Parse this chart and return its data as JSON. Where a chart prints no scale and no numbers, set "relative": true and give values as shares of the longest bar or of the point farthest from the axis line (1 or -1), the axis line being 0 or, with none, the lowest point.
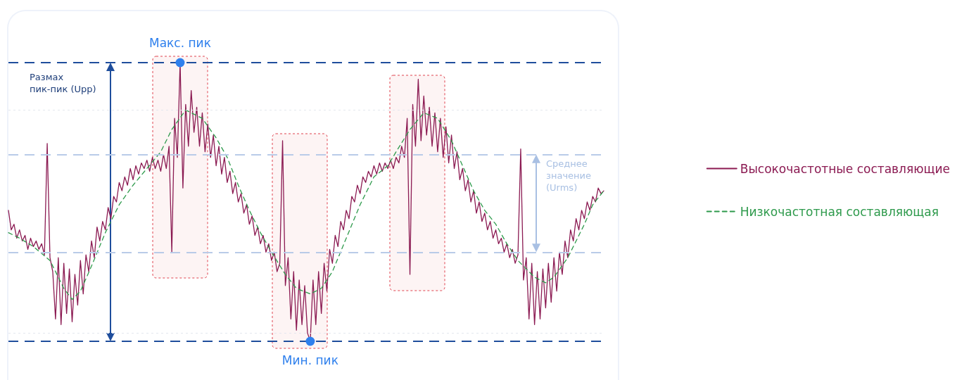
{
  "chart_data": {
    "type": "line",
    "relative": true,
    "legend": "right",
    "categories": [
      null,
      null,
      null,
      null,
      null,
      null,
      null,
      null,
      null,
      null,
      null,
      null,
      null,
      null,
      null,
      null,
      null,
      null,
      null,
      null,
      null,
      null,
      null,
      null,
      null,
      null,
      null,
      null,
      null,
      null,
      null,
      null,
      null,
      null,
      null,
      null,
      null,
      null,
      null,
      null,
      null,
      null,
      null,
      null,
      null,
      null,
      null,
      null,
      null,
      null,
      null,
      null,
      null,
      null,
      null,
      null,
      null,
      null,
      null,
      null,
      null,
      null,
      null,
      null,
      null,
      null,
      null,
      null,
      null,
      null,
      null,
      null,
      null,
      null,
      null,
      null,
      null,
      null,
      null,
      null,
      null,
      null,
      null,
      null,
      null,
      null,
      null,
      null,
      null,
      null,
      null,
      null,
      null,
      null,
      null,
      null,
      null,
      null,
      null,
      null,
      null,
      null,
      null,
      null,
      null,
      null,
      null,
      null,
      null,
      null,
      null,
      null,
      null,
      null,
      null,
      null,
      null,
      null,
      null,
      null,
      null,
      null,
      null,
      null,
      null,
      null,
      null,
      null,
      null,
      null,
      null,
      null,
      null,
      null,
      null,
      null,
      null,
      null,
      null,
      null,
      null,
      null,
      null,
      null,
      null,
      null,
      null,
      null,
      null,
      null,
      null,
      null,
      null,
      null,
      null,
      null,
      null,
      null,
      null,
      null,
      null,
      null,
      null,
      null,
      null,
      null,
      null,
      null,
      null,
      null,
      null,
      null,
      null,
      null,
      null,
      null,
      null,
      null,
      null,
      null,
      null,
      null,
      null,
      null,
      null,
      null,
      null,
      null,
      null,
      null,
      null,
      null,
      null,
      null,
      null,
      null,
      null,
      null,
      null,
      null,
      null,
      null,
      null,
      null,
      null,
      null,
      null,
      null,
      null,
      null,
      null,
      null,
      null,
      null,
      null,
      null
    ],
    "series": [
      {
        "name": "Высокочастотные составляющие",
        "color": "#8b1a52",
        "line_style": "solid",
        "marker": "none",
        "values": [
          0.47,
          0.4,
          0.42,
          0.37,
          0.4,
          0.36,
          0.38,
          0.33,
          0.37,
          0.34,
          0.36,
          0.33,
          0.35,
          0.31,
          0.71,
          0.3,
          0.25,
          0.08,
          0.3,
          0.06,
          0.28,
          0.1,
          0.26,
          0.07,
          0.24,
          0.13,
          0.29,
          0.17,
          0.31,
          0.25,
          0.36,
          0.3,
          0.41,
          0.36,
          0.43,
          0.4,
          0.48,
          0.44,
          0.52,
          0.5,
          0.57,
          0.54,
          0.59,
          0.56,
          0.62,
          0.58,
          0.63,
          0.6,
          0.64,
          0.62,
          0.65,
          0.61,
          0.66,
          0.62,
          0.65,
          0.61,
          0.67,
          0.62,
          0.7,
          0.32,
          0.8,
          0.66,
          1.0,
          0.55,
          0.85,
          0.7,
          0.9,
          0.75,
          0.84,
          0.7,
          0.82,
          0.68,
          0.78,
          0.66,
          0.74,
          0.63,
          0.7,
          0.6,
          0.66,
          0.57,
          0.61,
          0.53,
          0.57,
          0.5,
          0.53,
          0.46,
          0.49,
          0.42,
          0.45,
          0.38,
          0.41,
          0.35,
          0.38,
          0.32,
          0.35,
          0.29,
          0.32,
          0.25,
          0.28,
          0.72,
          0.2,
          0.3,
          0.08,
          0.25,
          0.04,
          0.22,
          0.06,
          0.2,
          0.03,
          0.0,
          0.22,
          0.06,
          0.25,
          0.1,
          0.28,
          0.18,
          0.33,
          0.28,
          0.38,
          0.34,
          0.43,
          0.4,
          0.47,
          0.44,
          0.52,
          0.5,
          0.56,
          0.53,
          0.59,
          0.57,
          0.61,
          0.59,
          0.63,
          0.6,
          0.64,
          0.61,
          0.64,
          0.62,
          0.65,
          0.62,
          0.66,
          0.64,
          0.7,
          0.66,
          0.8,
          0.24,
          0.85,
          0.7,
          0.94,
          0.72,
          0.88,
          0.74,
          0.84,
          0.7,
          0.82,
          0.68,
          0.8,
          0.66,
          0.77,
          0.64,
          0.74,
          0.62,
          0.68,
          0.58,
          0.62,
          0.54,
          0.58,
          0.5,
          0.54,
          0.46,
          0.5,
          0.43,
          0.46,
          0.4,
          0.43,
          0.37,
          0.4,
          0.35,
          0.37,
          0.32,
          0.35,
          0.3,
          0.33,
          0.28,
          0.31,
          0.69,
          0.22,
          0.3,
          0.08,
          0.28,
          0.06,
          0.25,
          0.08,
          0.26,
          0.12,
          0.28,
          0.14,
          0.3,
          0.18,
          0.32,
          0.24,
          0.36,
          0.3,
          0.4,
          0.36,
          0.44,
          0.4,
          0.47,
          0.44,
          0.5,
          0.47,
          0.52,
          0.5,
          0.55,
          0.53,
          0.54
        ]
      },
      {
        "name": "Низкочастотная составляющая",
        "color": "#2e9a4c",
        "line_style": "dashed",
        "marker": "none",
        "values": [
          0.39,
          null,
          null,
          null,
          0.37,
          null,
          null,
          null,
          null,
          0.34,
          null,
          null,
          null,
          null,
          null,
          0.29,
          null,
          null,
          null,
          null,
          0.19,
          null,
          null,
          0.15,
          null,
          null,
          0.18,
          null,
          null,
          null,
          0.27,
          null,
          null,
          null,
          null,
          0.39,
          null,
          null,
          null,
          null,
          0.49,
          null,
          null,
          null,
          null,
          0.56,
          null,
          null,
          null,
          null,
          0.62,
          null,
          null,
          null,
          null,
          0.68,
          null,
          null,
          null,
          0.76,
          null,
          null,
          null,
          null,
          0.83,
          null,
          null,
          null,
          null,
          null,
          0.8,
          null,
          null,
          null,
          null,
          0.73,
          null,
          null,
          null,
          0.66,
          null,
          null,
          null,
          0.56,
          null,
          null,
          null,
          0.47,
          null,
          null,
          null,
          0.39,
          null,
          null,
          null,
          0.32,
          null,
          null,
          null,
          null,
          0.24,
          null,
          null,
          null,
          0.19,
          null,
          null,
          null,
          null,
          0.17,
          null,
          null,
          null,
          0.19,
          null,
          null,
          null,
          0.25,
          null,
          null,
          null,
          null,
          0.37,
          null,
          null,
          null,
          null,
          0.49,
          null,
          null,
          null,
          null,
          0.59,
          null,
          null,
          null,
          null,
          0.63,
          null,
          null,
          0.68,
          null,
          null,
          null,
          null,
          0.76,
          null,
          null,
          null,
          null,
          0.82,
          null,
          null,
          null,
          null,
          0.8,
          null,
          null,
          null,
          null,
          0.72,
          null,
          null,
          null,
          0.63,
          null,
          null,
          null,
          0.54,
          null,
          null,
          null,
          0.47,
          null,
          null,
          null,
          0.42,
          null,
          null,
          null,
          0.35,
          null,
          null,
          null,
          0.29,
          null,
          null,
          null,
          null,
          null,
          0.23,
          null,
          null,
          null,
          0.21,
          null,
          null,
          0.23,
          null,
          null,
          null,
          null,
          0.3,
          null,
          null,
          null,
          null,
          null,
          0.42,
          null,
          null,
          0.49,
          null,
          null,
          null,
          0.54
        ]
      }
    ],
    "ref_lines": [
      {
        "axis": "y",
        "value": 1,
        "color": "#1f4e9c",
        "line_style": "dashed"
      },
      {
        "axis": "y",
        "value": 0,
        "color": "#1f4e9c",
        "line_style": "dashed"
      },
      {
        "axis": "y",
        "value": 0.67,
        "color": "#b9cbe8",
        "line_style": "dashed"
      },
      {
        "axis": "y",
        "value": 0.32,
        "color": "#b9cbe8",
        "line_style": "dashed"
      },
      {
        "axis": "y",
        "value": 0.83,
        "color": "#e3e7ee",
        "line_style": "dotted"
      },
      {
        "axis": "y",
        "value": 0.03,
        "color": "#e3e7ee",
        "line_style": "dotted"
      }
    ],
    "annotations": [
      {
        "text": "Макс. пик",
        "y": 1
      },
      {
        "text": "Мин. пик",
        "y": 0
      },
      {
        "text": "Размах пик-пик (Upp)",
        "y": 1
      },
      {
        "text": "Среднее значение (Urms)",
        "y": 0.67
      }
    ]
  }
}
